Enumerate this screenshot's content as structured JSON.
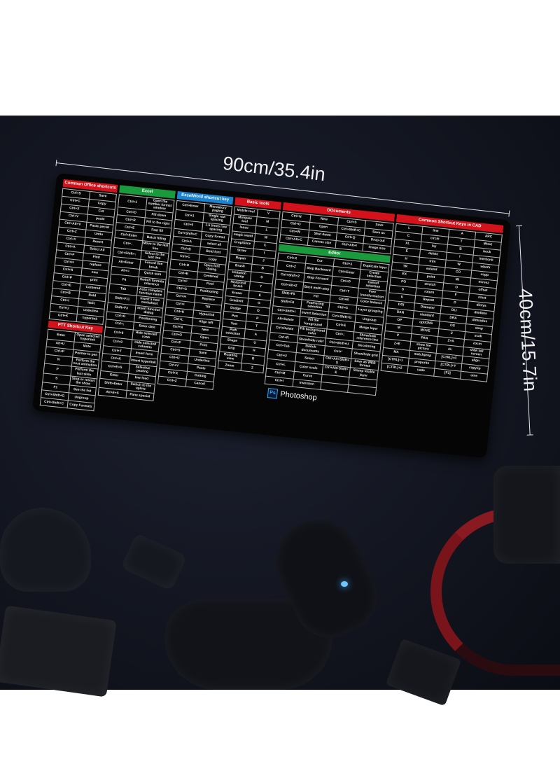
{
  "dimensions": {
    "width": "90cm/35.4in",
    "height": "40cm/15.7in"
  },
  "colors": {
    "red": "#d3121b",
    "green": "#1a9a3c",
    "blue": "#1b82cf",
    "pad": "#050505"
  },
  "office": {
    "title": "Common Office shortcuts",
    "rows": [
      [
        "Ctrl+S",
        "Save"
      ],
      [
        "Ctrl+C",
        "Copy"
      ],
      [
        "Ctrl+X",
        "Cut"
      ],
      [
        "Ctrl+V",
        "paste"
      ],
      [
        "Ctrl+Alt+V",
        "Paste pecial"
      ],
      [
        "Ctrl+Z",
        "Undo"
      ],
      [
        "Ctrl+Y",
        "Revert"
      ],
      [
        "Ctrl+A",
        "Select All"
      ],
      [
        "Ctrl+F",
        "Find"
      ],
      [
        "Ctrl+H",
        "replace"
      ],
      [
        "Ctrl+N",
        "new"
      ],
      [
        "Ctrl+P",
        "print"
      ],
      [
        "Ctrl+E",
        "Centered"
      ],
      [
        "Ctrl+B",
        "Bold"
      ],
      [
        "Ctrl+I",
        "Italic"
      ],
      [
        "Ctrl+U",
        "underline"
      ],
      [
        "Ctrl+K",
        "hyperlink"
      ]
    ]
  },
  "ptt": {
    "title": "PTT Shortcut Key",
    "rows": [
      [
        "Enter",
        "Open selected hyperlink"
      ],
      [
        "Alt+U",
        "Mute"
      ],
      [
        "Ctrl+P",
        "Pointer to pen"
      ],
      [
        "N",
        "Perform the next animation"
      ],
      [
        "P",
        "Perform the last slide"
      ],
      [
        "S",
        "Stop or restart the show"
      ],
      [
        "F1",
        "See the list"
      ],
      [
        "Ctrl+Shift+G",
        "Ungroup"
      ],
      [
        "Ctrl+Shift+C",
        "Copy Formats"
      ]
    ]
  },
  "excel": {
    "title": "Excel",
    "rows": [
      [
        "Ctrl+1",
        "Open the number format window"
      ],
      [
        "Ctrl+D",
        "Fill down"
      ],
      [
        "Ctrl+R",
        "Fill to the right"
      ],
      [
        "Ctrl+E",
        "Fast fill"
      ],
      [
        "Ctrl+Enter",
        "Batch filling"
      ],
      [
        "Ctrl+↓",
        "Move to the last line"
      ],
      [
        "Ctrl+Shift+↓",
        "Select to the last line"
      ],
      [
        "Alt+Enter",
        "Forced line break"
      ],
      [
        "Alt+=",
        "Quick sum"
      ],
      [
        "F4",
        "Switch formula reference"
      ],
      [
        "Tab",
        "Auto complete function name"
      ],
      [
        "Shift+F11",
        "Insert a new worksheet"
      ],
      [
        "Shift+F3",
        "Insert function dialog"
      ],
      [
        "Ctrl+G",
        "Positioning"
      ],
      [
        "Ctrl+;",
        "Enter date"
      ],
      [
        "Ctrl+9",
        "Hide selected rows"
      ],
      [
        "Ctrl+0",
        "Hide selected columns"
      ],
      [
        "Ctrl+T",
        "Insert form"
      ],
      [
        "Ctrl+K",
        "Insert hyperlink"
      ],
      [
        "Ctrl+E+S",
        "Selective pasting"
      ],
      [
        "Enter",
        "line feed"
      ],
      [
        "Shift+Enter",
        "Switch to the upline"
      ],
      [
        "Alt+E+S",
        "Pane special"
      ]
    ]
  },
  "word": {
    "title": "ExcelWord shortcut key",
    "rows": [
      [
        "Ctrl+Enter",
        "Mandatory paging"
      ],
      [
        "Ctrl+1",
        "Single row spacing"
      ],
      [
        "Ctrl+5",
        "1.5 times row spacing"
      ],
      [
        "Ctrl+Shift+C",
        "Copy format"
      ],
      [
        "Ctrl+A",
        "select all"
      ],
      [
        "Ctrl+B",
        "Bold font"
      ],
      [
        "Ctrl+C",
        "Copy"
      ],
      [
        "Ctrl+D",
        "Open font dialog"
      ],
      [
        "Ctrl+E",
        "Centered"
      ],
      [
        "Ctrl+F",
        "Find"
      ],
      [
        "Ctrl+G",
        "Positioning"
      ],
      [
        "Ctrl+H",
        "Replace"
      ],
      [
        "Ctrl+I",
        "Tilt"
      ],
      [
        "Ctrl+K",
        "Hyperlink"
      ],
      [
        "Ctrl+L",
        "Align left"
      ],
      [
        "Ctrl+N",
        "New"
      ],
      [
        "Ctrl+O",
        "Open"
      ],
      [
        "Ctrl+P",
        "Print"
      ],
      [
        "Ctrl+S",
        "Save"
      ],
      [
        "Ctrl+U",
        "Underline"
      ],
      [
        "Ctrl+V",
        "Paste"
      ],
      [
        "Ctrl+X",
        "Cutting"
      ],
      [
        "Ctrl+Z",
        "Cancel"
      ]
    ]
  },
  "basic": {
    "title": "Basic tools",
    "rows": [
      [
        "Mobile tool",
        "V"
      ],
      [
        "Marquee tool",
        "M"
      ],
      [
        "lasso",
        "L"
      ],
      [
        "magic wand",
        "W"
      ],
      [
        "Crop/Slice",
        "C"
      ],
      [
        "Straw",
        "I"
      ],
      [
        "Repair",
        "J"
      ],
      [
        "Brush",
        "B"
      ],
      [
        "Imitation stamp",
        "S"
      ],
      [
        "Historical brush",
        "Y"
      ],
      [
        "Eraser",
        "E"
      ],
      [
        "Gradient",
        "G"
      ],
      [
        "Dodge",
        "O"
      ],
      [
        "Pen",
        "P"
      ],
      [
        "Text",
        "T"
      ],
      [
        "Path selection",
        "A"
      ],
      [
        "Shape",
        "U"
      ],
      [
        "Grip",
        "H"
      ],
      [
        "Rotating view",
        "R"
      ],
      [
        "Zoom",
        "Z"
      ]
    ]
  },
  "documents": {
    "title": "DOcuments",
    "rows": [
      [
        "Ctrl+N",
        "New",
        "Ctrl+S",
        "Save"
      ],
      [
        "Ctrl+O",
        "Open",
        "Ctrl+Shift+C",
        "Save as"
      ],
      [
        "Ctrl+W",
        "Shut down",
        "Ctrl+Q",
        "Drop out"
      ],
      [
        "Ctrl+Alt+C",
        "Canvas size",
        "Ctrl+Alt+I",
        "Image size"
      ]
    ]
  },
  "editor": {
    "title": "Editor",
    "rows": [
      [
        "Ctrl+X",
        "Cut",
        "Ctrl+J",
        "Duplicate layer"
      ],
      [
        "Ctrl+Z",
        "Step Backward",
        "Ctrl+Enter",
        "Create selection"
      ],
      [
        "Ctrl+Shift+Z",
        "Step Forward",
        "Ctrl+D",
        "Cancel selection"
      ],
      [
        "Ctrl+Alt+Z",
        "Back multi-step",
        "Ctrl+T",
        "Free transformation"
      ],
      [
        "Shift+F5",
        "Fill",
        "Ctrl+B",
        "Color balance"
      ],
      [
        "Shift+F6",
        "Feathering selection",
        "Ctrl+G",
        "Layer grouping"
      ],
      [
        "Ctrl+Shift+I",
        "Invert Selection",
        "Ctrl+Shift+G",
        "Ungroup"
      ],
      [
        "Alt+Delete",
        "Fill the foreground",
        "Ctrl+E",
        "Merge layer"
      ],
      [
        "Ctrl+Delete",
        "Fill background color",
        "Ctrl+;",
        "Show/hide reference line"
      ],
      [
        "Ctrl+R",
        "Show/hide ruler",
        "Ctrl+Shift+U",
        "Decoloring"
      ],
      [
        "Ctrl+Tab",
        "Switch documents",
        "Ctrl+'",
        "Show/hide grid"
      ],
      [
        "Ctrl+U",
        "Select",
        "Ctrl+Alt+Shift+S",
        "Save as WEB format"
      ],
      [
        "Ctrl+L",
        "Color scale",
        "Ctrl+Alt+Shift+E",
        "Stamp visible layer"
      ],
      [
        "Ctrl+M",
        "Curve",
        "",
        ""
      ],
      [
        "Ctrl+I",
        "Inversion",
        "",
        ""
      ]
    ],
    "logo": "Photoshop",
    "logo_icon": "Ps"
  },
  "cad": {
    "title": "Common Shortcut Keys in CAD",
    "rows": [
      [
        "L",
        "line",
        "A",
        "ARC"
      ],
      [
        "C",
        "circle",
        "T",
        "Mtext"
      ],
      [
        "XL",
        "lay",
        "B",
        "bock"
      ],
      [
        "E",
        "delete",
        "I",
        "inertionk"
      ],
      [
        "H",
        "trim",
        "W",
        "wbork"
      ],
      [
        "TR",
        "extend",
        "CO",
        "copp"
      ],
      [
        "EX",
        "point",
        "MI",
        "mireez"
      ],
      [
        "PO",
        "stretch",
        "O",
        "offset"
      ],
      [
        "S",
        "roturn",
        "F",
        "rilset"
      ],
      [
        "U",
        "Repeat",
        "D",
        "dintys"
      ],
      [
        "DOI",
        "Diameter",
        "DLI",
        "dimllear"
      ],
      [
        "DAN",
        "standard",
        "DRA",
        "dimradus"
      ],
      [
        "OP",
        "optIONS",
        "OS",
        "osap"
      ],
      [
        "M",
        "MOVE",
        "Z",
        "scak"
      ],
      [
        "P",
        "PAN",
        "Z+A",
        "zocm"
      ],
      [
        "Z+E",
        "show tue picture",
        "AL",
        "shtw tall screen"
      ],
      [
        "MA",
        "matchprop",
        "[CTRL]+C",
        "align"
      ],
      [
        "[CTRL]+1",
        "proporite",
        "[CTRL]+Y",
        "capylip"
      ],
      [
        "[CTRL]+2",
        "uade",
        "[F3]",
        "oine"
      ]
    ]
  }
}
